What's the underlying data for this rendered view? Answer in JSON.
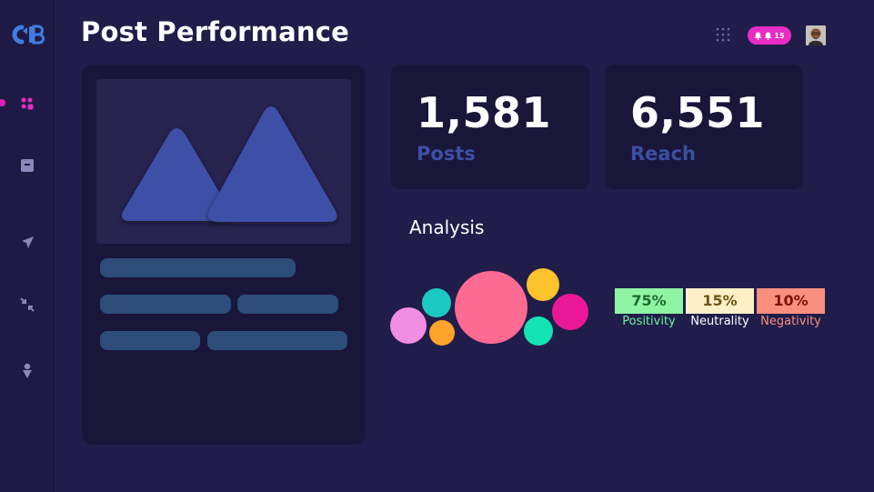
{
  "header": {
    "title": "Post Performance",
    "notifications": {
      "count": "15"
    }
  },
  "sidebar": {
    "items": [
      {
        "icon": "dashboard-icon",
        "active": true
      },
      {
        "icon": "archive-icon",
        "active": false
      },
      {
        "icon": "send-icon",
        "active": false
      },
      {
        "icon": "collapse-arrows-icon",
        "active": false
      },
      {
        "icon": "location-pin-icon",
        "active": false
      }
    ]
  },
  "stats": [
    {
      "value": "1,581",
      "label": "Posts"
    },
    {
      "value": "6,551",
      "label": "Reach"
    }
  ],
  "analysis": {
    "title": "Analysis",
    "sentiments": [
      {
        "percent": "75%",
        "label": "Positivity",
        "box_color": "#8ff5a5",
        "text_color": "#1f6b2e",
        "label_color": "#6df29a"
      },
      {
        "percent": "15%",
        "label": "Neutrality",
        "box_color": "#fdf0c8",
        "text_color": "#6b5415",
        "label_color": "#ffffff"
      },
      {
        "percent": "10%",
        "label": "Negativity",
        "box_color": "#f98f7f",
        "text_color": "#7a1408",
        "label_color": "#f98f7f"
      }
    ]
  },
  "colors": {
    "background": "#211d4a",
    "card": "#19163a",
    "accent": "#e82cc4",
    "stat_label": "#3c4fa3",
    "skeleton": "#2c4c7a"
  }
}
